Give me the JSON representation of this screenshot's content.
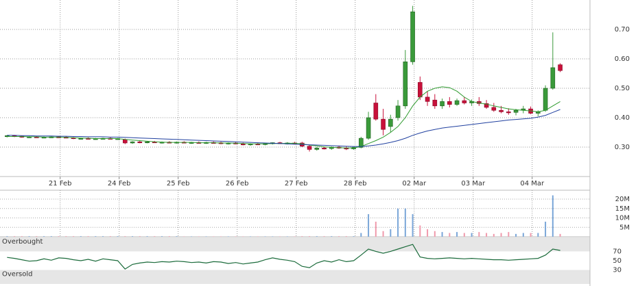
{
  "chart_data": [
    {
      "type": "candlestick",
      "x": [
        0.1,
        0.225,
        0.35,
        0.475,
        0.6,
        0.725,
        0.85,
        0.975,
        1.1,
        1.225,
        1.35,
        1.475,
        1.6,
        1.725,
        1.85,
        1.975,
        2.1,
        2.225,
        2.35,
        2.475,
        2.6,
        2.725,
        2.85,
        2.975,
        3.1,
        3.225,
        3.35,
        3.475,
        3.6,
        3.725,
        3.85,
        3.975,
        4.1,
        4.225,
        4.35,
        4.475,
        4.6,
        4.725,
        4.85,
        4.975,
        5.1,
        5.225,
        5.35,
        5.475,
        5.6,
        5.725,
        5.85,
        5.975,
        6.1,
        6.225,
        6.35,
        6.475,
        6.6,
        6.725,
        6.85,
        6.975,
        7.1,
        7.225,
        7.35,
        7.475,
        7.6,
        7.725,
        7.85,
        7.975,
        8.1,
        8.225,
        8.35,
        8.475,
        8.6,
        8.725,
        8.85,
        8.975,
        9.1,
        9.225,
        9.35,
        9.475
      ],
      "open": [
        0.336,
        0.339,
        0.337,
        0.334,
        0.335,
        0.333,
        0.334,
        0.335,
        0.334,
        0.332,
        0.329,
        0.33,
        0.328,
        0.329,
        0.33,
        0.328,
        0.326,
        0.314,
        0.318,
        0.316,
        0.318,
        0.315,
        0.317,
        0.316,
        0.317,
        0.315,
        0.316,
        0.314,
        0.316,
        0.315,
        0.312,
        0.314,
        0.311,
        0.309,
        0.311,
        0.31,
        0.312,
        0.315,
        0.313,
        0.314,
        0.314,
        0.303,
        0.292,
        0.297,
        0.295,
        0.3,
        0.297,
        0.294,
        0.299,
        0.33,
        0.45,
        0.395,
        0.37,
        0.4,
        0.44,
        0.59,
        0.52,
        0.47,
        0.46,
        0.44,
        0.455,
        0.445,
        0.458,
        0.45,
        0.455,
        0.448,
        0.435,
        0.425,
        0.42,
        0.418,
        0.425,
        0.43,
        0.415,
        0.425,
        0.5,
        0.58
      ],
      "high": [
        0.341,
        0.341,
        0.339,
        0.337,
        0.338,
        0.336,
        0.337,
        0.338,
        0.337,
        0.334,
        0.332,
        0.333,
        0.331,
        0.332,
        0.333,
        0.331,
        0.329,
        0.32,
        0.321,
        0.32,
        0.321,
        0.319,
        0.32,
        0.319,
        0.32,
        0.318,
        0.319,
        0.318,
        0.319,
        0.318,
        0.316,
        0.317,
        0.315,
        0.313,
        0.314,
        0.314,
        0.316,
        0.318,
        0.317,
        0.318,
        0.318,
        0.306,
        0.3,
        0.301,
        0.302,
        0.304,
        0.303,
        0.301,
        0.335,
        0.42,
        0.48,
        0.43,
        0.41,
        0.46,
        0.63,
        0.78,
        0.54,
        0.49,
        0.48,
        0.465,
        0.47,
        0.465,
        0.47,
        0.462,
        0.47,
        0.46,
        0.45,
        0.44,
        0.432,
        0.43,
        0.44,
        0.438,
        0.425,
        0.51,
        0.69,
        0.585
      ],
      "low": [
        0.333,
        0.334,
        0.332,
        0.331,
        0.332,
        0.33,
        0.331,
        0.332,
        0.33,
        0.327,
        0.326,
        0.326,
        0.325,
        0.326,
        0.327,
        0.325,
        0.31,
        0.311,
        0.313,
        0.313,
        0.314,
        0.312,
        0.313,
        0.312,
        0.313,
        0.311,
        0.312,
        0.311,
        0.312,
        0.31,
        0.309,
        0.31,
        0.306,
        0.305,
        0.307,
        0.306,
        0.309,
        0.311,
        0.309,
        0.31,
        0.3,
        0.285,
        0.288,
        0.292,
        0.291,
        0.294,
        0.29,
        0.291,
        0.296,
        0.325,
        0.39,
        0.34,
        0.35,
        0.39,
        0.43,
        0.58,
        0.46,
        0.44,
        0.43,
        0.43,
        0.435,
        0.44,
        0.445,
        0.44,
        0.44,
        0.43,
        0.42,
        0.415,
        0.41,
        0.408,
        0.415,
        0.412,
        0.405,
        0.42,
        0.495,
        0.555
      ],
      "close": [
        0.339,
        0.337,
        0.334,
        0.335,
        0.333,
        0.334,
        0.335,
        0.334,
        0.332,
        0.329,
        0.33,
        0.328,
        0.329,
        0.33,
        0.328,
        0.329,
        0.314,
        0.318,
        0.316,
        0.318,
        0.315,
        0.317,
        0.316,
        0.317,
        0.315,
        0.316,
        0.314,
        0.316,
        0.315,
        0.312,
        0.314,
        0.311,
        0.309,
        0.311,
        0.31,
        0.312,
        0.315,
        0.313,
        0.314,
        0.312,
        0.303,
        0.292,
        0.297,
        0.295,
        0.3,
        0.297,
        0.294,
        0.299,
        0.33,
        0.4,
        0.395,
        0.36,
        0.395,
        0.44,
        0.59,
        0.76,
        0.47,
        0.455,
        0.44,
        0.455,
        0.445,
        0.458,
        0.45,
        0.455,
        0.448,
        0.435,
        0.425,
        0.42,
        0.418,
        0.425,
        0.43,
        0.415,
        0.42,
        0.5,
        0.57,
        0.56
      ],
      "up_color": "#3a9a3a",
      "down_color": "#c8103a",
      "overlays": [
        {
          "color": "#2e9a2e",
          "values": [
            0.336,
            0.336,
            0.336,
            0.335,
            0.335,
            0.334,
            0.334,
            0.334,
            0.333,
            0.332,
            0.331,
            0.33,
            0.329,
            0.329,
            0.329,
            0.329,
            0.326,
            0.324,
            0.322,
            0.32,
            0.318,
            0.317,
            0.316,
            0.316,
            0.316,
            0.316,
            0.315,
            0.315,
            0.315,
            0.314,
            0.314,
            0.313,
            0.312,
            0.311,
            0.311,
            0.311,
            0.312,
            0.312,
            0.313,
            0.313,
            0.311,
            0.307,
            0.304,
            0.301,
            0.299,
            0.298,
            0.297,
            0.297,
            0.302,
            0.312,
            0.322,
            0.334,
            0.35,
            0.37,
            0.4,
            0.44,
            0.47,
            0.49,
            0.5,
            0.505,
            0.502,
            0.49,
            0.47,
            0.455,
            0.45,
            0.446,
            0.44,
            0.435,
            0.43,
            0.427,
            0.425,
            0.423,
            0.42,
            0.425,
            0.44,
            0.455
          ]
        },
        {
          "color": "#1f3f9f",
          "values": [
            0.34,
            0.34,
            0.339,
            0.339,
            0.338,
            0.338,
            0.338,
            0.337,
            0.337,
            0.336,
            0.336,
            0.335,
            0.335,
            0.335,
            0.334,
            0.334,
            0.333,
            0.332,
            0.331,
            0.33,
            0.329,
            0.328,
            0.327,
            0.326,
            0.325,
            0.324,
            0.323,
            0.322,
            0.321,
            0.32,
            0.319,
            0.318,
            0.317,
            0.316,
            0.315,
            0.314,
            0.313,
            0.312,
            0.311,
            0.31,
            0.309,
            0.308,
            0.307,
            0.306,
            0.305,
            0.304,
            0.303,
            0.302,
            0.302,
            0.304,
            0.307,
            0.311,
            0.316,
            0.322,
            0.33,
            0.34,
            0.348,
            0.355,
            0.36,
            0.365,
            0.368,
            0.371,
            0.374,
            0.377,
            0.38,
            0.383,
            0.386,
            0.389,
            0.392,
            0.394,
            0.396,
            0.398,
            0.402,
            0.408,
            0.418,
            0.428
          ]
        }
      ],
      "xlim": [
        -0.02,
        9.98
      ],
      "xticks": [
        {
          "value": 1,
          "label": "21 Feb"
        },
        {
          "value": 2,
          "label": "24 Feb"
        },
        {
          "value": 3,
          "label": "25 Feb"
        },
        {
          "value": 4,
          "label": "26 Feb"
        },
        {
          "value": 5,
          "label": "27 Feb"
        },
        {
          "value": 6,
          "label": "28 Feb"
        },
        {
          "value": 7,
          "label": "02 Mar"
        },
        {
          "value": 8,
          "label": "03 Mar"
        },
        {
          "value": 9,
          "label": "04 Mar"
        }
      ],
      "ylim": [
        0.2,
        0.8
      ],
      "yticks": [
        {
          "value": 0.3,
          "label": "0.30"
        },
        {
          "value": 0.4,
          "label": "0.40"
        },
        {
          "value": 0.5,
          "label": "0.50"
        },
        {
          "value": 0.6,
          "label": "0.60"
        },
        {
          "value": 0.7,
          "label": "0.70"
        }
      ],
      "grid": true
    },
    {
      "type": "bar",
      "values": [
        300000,
        300000,
        300000,
        300000,
        300000,
        300000,
        300000,
        300000,
        300000,
        300000,
        300000,
        300000,
        300000,
        300000,
        300000,
        300000,
        300000,
        300000,
        300000,
        300000,
        300000,
        300000,
        300000,
        300000,
        200000,
        200000,
        200000,
        200000,
        200000,
        200000,
        200000,
        200000,
        200000,
        200000,
        200000,
        200000,
        200000,
        200000,
        200000,
        200000,
        300000,
        300000,
        300000,
        300000,
        300000,
        300000,
        300000,
        300000,
        2000000,
        12000000,
        8000000,
        3000000,
        4000000,
        15000000,
        15000000,
        12000000,
        6000000,
        4000000,
        3000000,
        2500000,
        2000000,
        2500000,
        2000000,
        2000000,
        2500000,
        2000000,
        1500000,
        2000000,
        2500000,
        1500000,
        2000000,
        2000000,
        2000000,
        8000000,
        22000000,
        1500000
      ],
      "up_color": "#7aa6d8",
      "down_color": "#f09aac",
      "ylim": [
        0,
        24000000
      ],
      "yticks": [
        {
          "value": 5000000,
          "label": "5M"
        },
        {
          "value": 10000000,
          "label": "10M"
        },
        {
          "value": 15000000,
          "label": "15M"
        },
        {
          "value": 20000000,
          "label": "20M"
        }
      ],
      "grid": true
    },
    {
      "type": "line",
      "color": "#1a6a3a",
      "values": [
        57,
        55,
        52,
        49,
        50,
        54,
        51,
        56,
        55,
        52,
        50,
        53,
        49,
        54,
        52,
        50,
        32,
        42,
        45,
        47,
        46,
        48,
        47,
        49,
        48,
        46,
        47,
        45,
        48,
        47,
        44,
        46,
        43,
        45,
        47,
        52,
        56,
        53,
        51,
        48,
        38,
        35,
        45,
        50,
        47,
        52,
        48,
        50,
        62,
        75,
        70,
        66,
        70,
        75,
        80,
        85,
        58,
        55,
        54,
        55,
        56,
        55,
        54,
        55,
        54,
        53,
        52,
        52,
        51,
        52,
        53,
        54,
        55,
        62,
        75,
        72
      ],
      "ylim": [
        0,
        100
      ],
      "yticks": [
        30,
        50,
        70
      ],
      "bands": [
        {
          "label": "Overbought",
          "from": 70,
          "to": 100
        },
        {
          "label": "Oversold",
          "from": 0,
          "to": 30
        }
      ],
      "band_color": "#e6e6e6"
    }
  ]
}
